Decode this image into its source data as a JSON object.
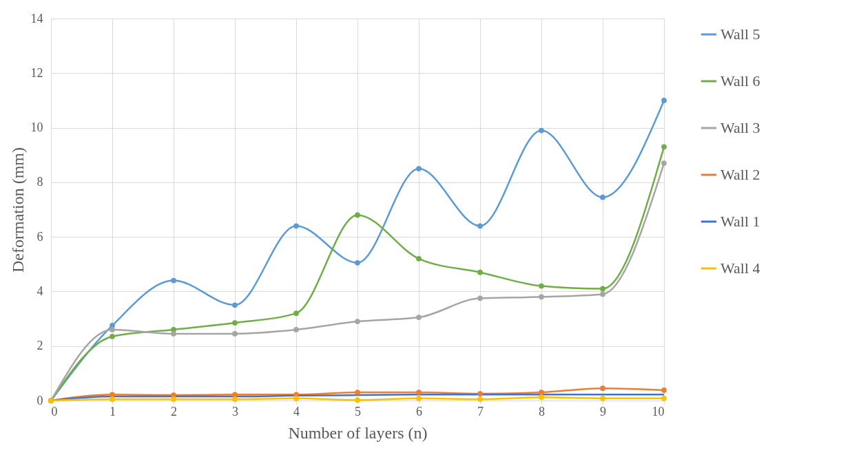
{
  "chart_data": {
    "type": "line",
    "xlabel": "Number of layers (n)",
    "ylabel": "Deformation (mm)",
    "x": [
      0,
      1,
      2,
      3,
      4,
      5,
      6,
      7,
      8,
      9,
      10
    ],
    "xlim": [
      0,
      10
    ],
    "xticks": [
      0,
      1,
      2,
      3,
      4,
      5,
      6,
      7,
      8,
      9,
      10
    ],
    "ylim": [
      0,
      14
    ],
    "yticks": [
      0,
      2,
      4,
      6,
      8,
      10,
      12,
      14
    ],
    "grid": true,
    "legend": "right",
    "marker": "circle",
    "line_style": "solid",
    "series": [
      {
        "name": "Wall 5",
        "color": "#5b9bd5",
        "values": [
          0,
          2.75,
          4.4,
          3.5,
          6.4,
          5.05,
          8.5,
          6.4,
          9.9,
          7.45,
          11
        ]
      },
      {
        "name": "Wall 6",
        "color": "#70ad47",
        "values": [
          0,
          2.35,
          2.6,
          2.85,
          3.2,
          6.8,
          5.2,
          4.7,
          4.2,
          4.1,
          9.3
        ]
      },
      {
        "name": "Wall 3",
        "color": "#a5a5a5",
        "values": [
          0,
          2.6,
          2.45,
          2.45,
          2.6,
          2.9,
          3.05,
          3.75,
          3.8,
          3.9,
          8.7
        ]
      },
      {
        "name": "Wall 2",
        "color": "#ed7d31",
        "values": [
          0,
          0.22,
          0.2,
          0.22,
          0.22,
          0.3,
          0.3,
          0.25,
          0.3,
          0.45,
          0.38
        ]
      },
      {
        "name": "Wall 1",
        "color": "#4472c4",
        "marker": "none",
        "values": [
          0,
          0.15,
          0.15,
          0.15,
          0.18,
          0.2,
          0.22,
          0.22,
          0.22,
          0.22,
          0.22
        ]
      },
      {
        "name": "Wall 4",
        "color": "#ffc000",
        "values": [
          0,
          0.05,
          0.05,
          0.05,
          0.08,
          0.02,
          0.08,
          0.05,
          0.12,
          0.08,
          0.08
        ]
      }
    ]
  }
}
